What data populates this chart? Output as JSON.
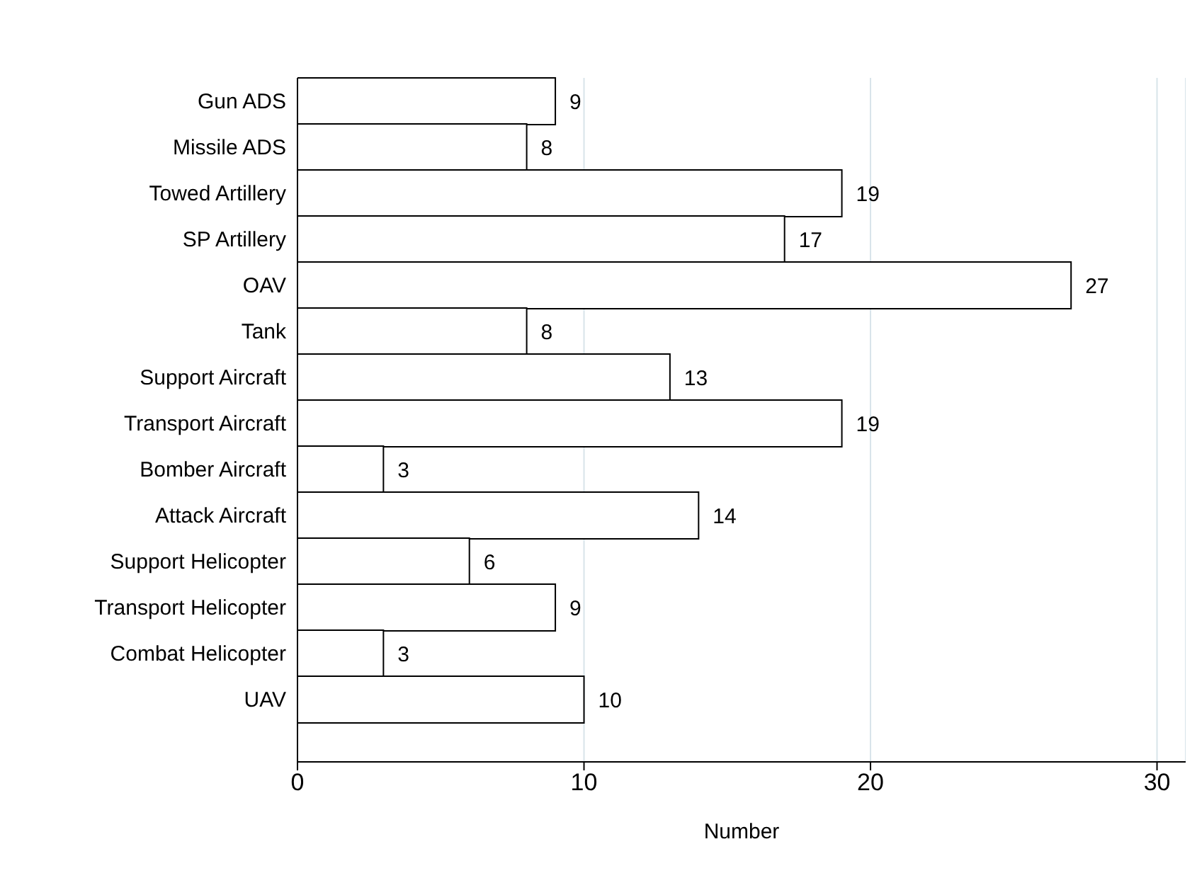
{
  "chart_data": {
    "type": "bar",
    "orientation": "horizontal",
    "xlabel": "Number",
    "categories": [
      "Gun ADS",
      "Missile ADS",
      "Towed Artillery",
      "SP Artillery",
      "OAV",
      "Tank",
      "Support Aircraft",
      "Transport Aircraft",
      "Bomber Aircraft",
      "Attack Aircraft",
      "Support Helicopter",
      "Transport Helicopter",
      "Combat Helicopter",
      "UAV"
    ],
    "values": [
      9,
      8,
      19,
      17,
      27,
      8,
      13,
      19,
      3,
      14,
      6,
      9,
      3,
      10
    ],
    "color": "#ffffff",
    "xlim": [
      0,
      31
    ],
    "xticks": [
      0,
      10,
      20,
      30
    ],
    "grid": "x",
    "data_labels": true
  }
}
